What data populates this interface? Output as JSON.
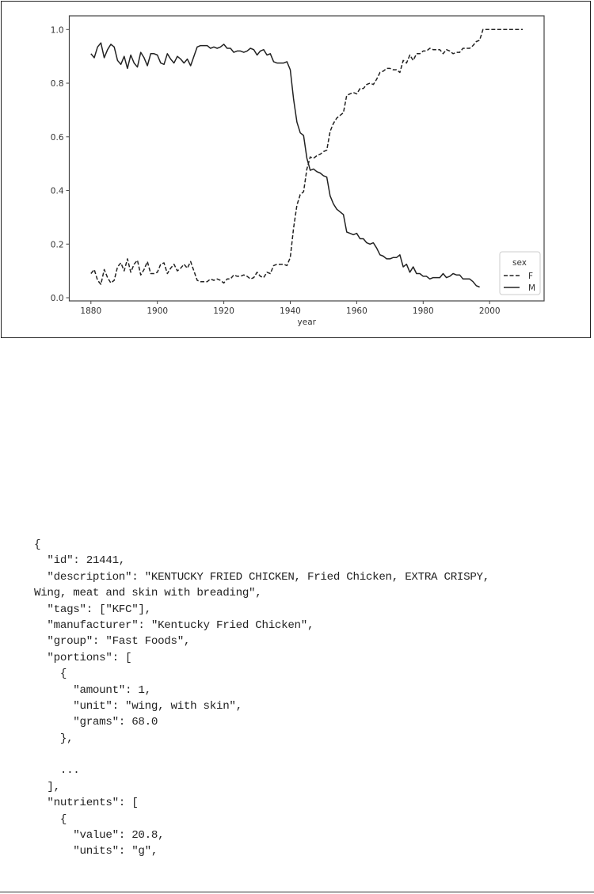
{
  "chart_data": {
    "type": "line",
    "xlabel": "year",
    "ylabel": "",
    "title": "",
    "xlim": [
      1873,
      2015
    ],
    "ylim": [
      -0.01,
      1.04
    ],
    "xticks": [
      "1880",
      "1900",
      "1920",
      "1940",
      "1960",
      "1980",
      "2000"
    ],
    "yticks": [
      "0.0",
      "0.2",
      "0.4",
      "0.6",
      "0.8",
      "1.0"
    ],
    "grid": false,
    "legend": {
      "title": "sex",
      "placement": "bottom-right"
    },
    "x": [
      1880,
      1881,
      1882,
      1883,
      1884,
      1885,
      1886,
      1887,
      1888,
      1889,
      1890,
      1891,
      1892,
      1893,
      1894,
      1895,
      1896,
      1897,
      1898,
      1899,
      1900,
      1901,
      1902,
      1903,
      1904,
      1905,
      1906,
      1907,
      1908,
      1909,
      1910,
      1911,
      1912,
      1913,
      1914,
      1915,
      1916,
      1917,
      1918,
      1919,
      1920,
      1921,
      1922,
      1923,
      1924,
      1925,
      1926,
      1927,
      1928,
      1929,
      1930,
      1931,
      1932,
      1933,
      1934,
      1935,
      1936,
      1937,
      1938,
      1939,
      1940,
      1941,
      1942,
      1943,
      1944,
      1945,
      1946,
      1947,
      1948,
      1949,
      1950,
      1951,
      1952,
      1953,
      1954,
      1955,
      1956,
      1957,
      1958,
      1959,
      1960,
      1961,
      1962,
      1963,
      1964,
      1965,
      1966,
      1967,
      1968,
      1969,
      1970,
      1971,
      1972,
      1973,
      1974,
      1975,
      1976,
      1977,
      1978,
      1979,
      1980,
      1981,
      1982,
      1983,
      1984,
      1985,
      1986,
      1987,
      1988,
      1989,
      1990,
      1991,
      1992,
      1993,
      1994,
      1995,
      1996,
      1997,
      1998,
      1999,
      2000,
      2001,
      2002,
      2003,
      2004,
      2005,
      2006,
      2007,
      2008,
      2009,
      2010
    ],
    "series": [
      {
        "name": "F",
        "style": "dashed",
        "color": "#222222",
        "values": [
          0.09,
          0.105,
          0.065,
          0.05,
          0.105,
          0.075,
          0.055,
          0.065,
          0.115,
          0.13,
          0.1,
          0.145,
          0.095,
          0.125,
          0.14,
          0.085,
          0.105,
          0.135,
          0.09,
          0.09,
          0.095,
          0.125,
          0.13,
          0.09,
          0.11,
          0.125,
          0.1,
          0.11,
          0.125,
          0.11,
          0.135,
          0.1,
          0.065,
          0.06,
          0.06,
          0.06,
          0.07,
          0.065,
          0.07,
          0.065,
          0.055,
          0.07,
          0.07,
          0.085,
          0.08,
          0.08,
          0.085,
          0.08,
          0.07,
          0.075,
          0.095,
          0.08,
          0.075,
          0.095,
          0.09,
          0.12,
          0.125,
          0.125,
          0.125,
          0.12,
          0.15,
          0.26,
          0.345,
          0.385,
          0.395,
          0.48,
          0.525,
          0.52,
          0.53,
          0.535,
          0.545,
          0.55,
          0.62,
          0.65,
          0.67,
          0.68,
          0.69,
          0.755,
          0.76,
          0.765,
          0.76,
          0.78,
          0.78,
          0.795,
          0.8,
          0.795,
          0.815,
          0.84,
          0.845,
          0.855,
          0.855,
          0.85,
          0.85,
          0.84,
          0.885,
          0.875,
          0.905,
          0.885,
          0.91,
          0.91,
          0.92,
          0.92,
          0.93,
          0.925,
          0.925,
          0.925,
          0.91,
          0.925,
          0.92,
          0.91,
          0.915,
          0.915,
          0.93,
          0.93,
          0.93,
          0.94,
          0.955,
          0.96,
          1.0,
          1.0,
          1.0,
          1.0,
          1.0,
          1.0,
          1.0,
          1.0,
          1.0,
          1.0,
          1.0,
          1.0,
          1.0
        ]
      },
      {
        "name": "M",
        "style": "solid",
        "color": "#222222",
        "values": [
          0.91,
          0.895,
          0.935,
          0.95,
          0.895,
          0.925,
          0.945,
          0.935,
          0.885,
          0.87,
          0.9,
          0.855,
          0.905,
          0.875,
          0.86,
          0.915,
          0.895,
          0.865,
          0.91,
          0.91,
          0.905,
          0.875,
          0.87,
          0.91,
          0.89,
          0.875,
          0.9,
          0.89,
          0.875,
          0.89,
          0.865,
          0.9,
          0.935,
          0.94,
          0.94,
          0.94,
          0.93,
          0.935,
          0.93,
          0.935,
          0.945,
          0.93,
          0.93,
          0.915,
          0.92,
          0.92,
          0.915,
          0.92,
          0.93,
          0.925,
          0.905,
          0.92,
          0.925,
          0.905,
          0.91,
          0.88,
          0.875,
          0.875,
          0.875,
          0.88,
          0.85,
          0.74,
          0.655,
          0.615,
          0.605,
          0.52,
          0.475,
          0.48,
          0.47,
          0.465,
          0.455,
          0.45,
          0.38,
          0.35,
          0.33,
          0.32,
          0.31,
          0.245,
          0.24,
          0.235,
          0.24,
          0.22,
          0.22,
          0.205,
          0.2,
          0.205,
          0.185,
          0.16,
          0.155,
          0.145,
          0.145,
          0.15,
          0.15,
          0.16,
          0.115,
          0.125,
          0.095,
          0.115,
          0.09,
          0.09,
          0.08,
          0.08,
          0.07,
          0.075,
          0.075,
          0.075,
          0.09,
          0.075,
          0.08,
          0.09,
          0.085,
          0.085,
          0.07,
          0.07,
          0.07,
          0.06,
          0.045,
          0.04,
          null,
          null,
          null,
          null,
          null,
          null,
          null,
          null,
          null,
          null,
          null,
          null,
          null
        ]
      }
    ]
  },
  "code": {
    "lines": [
      "{",
      "  \"id\": 21441,",
      "  \"description\": \"KENTUCKY FRIED CHICKEN, Fried Chicken, EXTRA CRISPY,",
      "Wing, meat and skin with breading\",",
      "  \"tags\": [\"KFC\"],",
      "  \"manufacturer\": \"Kentucky Fried Chicken\",",
      "  \"group\": \"Fast Foods\",",
      "  \"portions\": [",
      "    {",
      "      \"amount\": 1,",
      "      \"unit\": \"wing, with skin\",",
      "      \"grams\": 68.0",
      "    },",
      "",
      "    ...",
      "  ],",
      "  \"nutrients\": [",
      "    {",
      "      \"value\": 20.8,",
      "      \"units\": \"g\","
    ]
  }
}
